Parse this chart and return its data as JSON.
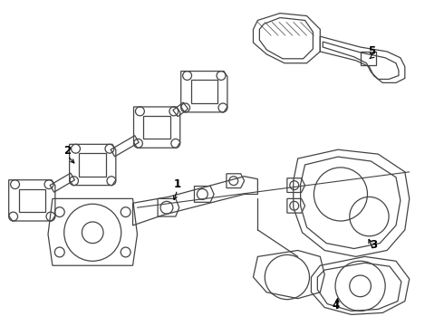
{
  "bg_color": "#ffffff",
  "line_color": "#444444",
  "label_color": "#000000",
  "lw": 0.9,
  "label_fontsize": 8.5
}
